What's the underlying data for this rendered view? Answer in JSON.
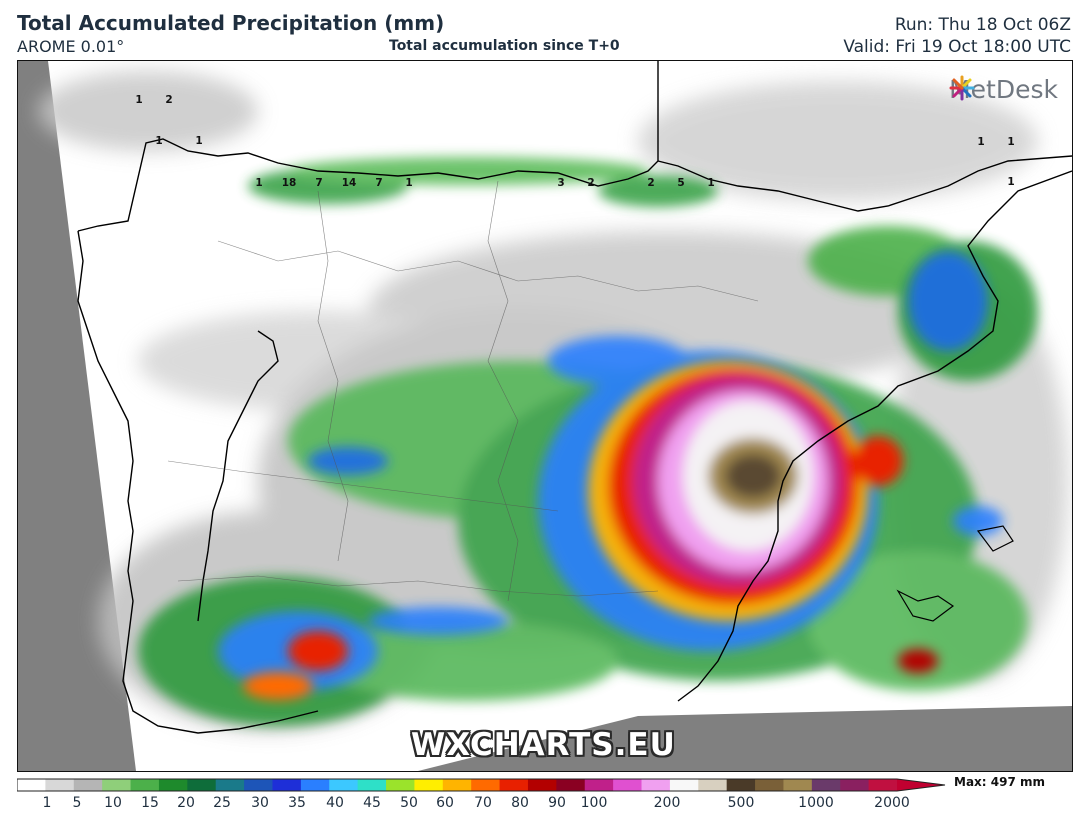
{
  "header": {
    "title": "Total Accumulated Precipitation (mm)",
    "model": "AROME 0.01°",
    "subtitle": "Total accumulation since T+0",
    "run": "Run: Thu 18 Oct 06Z",
    "valid": "Valid: Fri 19 Oct 18:00 UTC"
  },
  "logo": {
    "text": "MetDesk",
    "icon": "metdesk-burst-icon"
  },
  "watermark": "WXCHARTS.EU",
  "legend": {
    "max_label": "Max: 497 mm",
    "ticks": [
      "1",
      "5",
      "10",
      "15",
      "20",
      "25",
      "30",
      "35",
      "40",
      "45",
      "50",
      "60",
      "70",
      "80",
      "90",
      "100",
      "200",
      "500",
      "1000",
      "2000"
    ],
    "colors": [
      "#ffffff",
      "#d8d8d8",
      "#b5b5b5",
      "#8fcf7a",
      "#4cb04a",
      "#1e8a2c",
      "#0e6d3a",
      "#1a7a8a",
      "#1d55b8",
      "#1e2fd8",
      "#2a7fff",
      "#3cc8ff",
      "#2ee0c8",
      "#9be32b",
      "#ffee00",
      "#ffb400",
      "#ff6a00",
      "#e82000",
      "#b30000",
      "#8a0022",
      "#c0208a",
      "#e050d0",
      "#f0a0f0",
      "#f8f8f8",
      "#d8d0c0",
      "#4a3a28",
      "#7a6038",
      "#a08850",
      "#6a3a6a",
      "#8a2060",
      "#c01040"
    ],
    "accent_bar_end": "#c00030"
  },
  "map_values": [
    {
      "t": "1",
      "r": "row1"
    },
    {
      "t": "2",
      "r": "row1"
    },
    {
      "t": "1",
      "r": "row2"
    },
    {
      "t": "1",
      "r": "row2"
    },
    {
      "t": "1",
      "r": "cant"
    },
    {
      "t": "18",
      "r": "cant"
    },
    {
      "t": "7",
      "r": "cant"
    },
    {
      "t": "14",
      "r": "cant"
    },
    {
      "t": "7",
      "r": "cant"
    },
    {
      "t": "1",
      "r": "cant"
    },
    {
      "t": "3",
      "r": "n"
    },
    {
      "t": "2",
      "r": "n"
    },
    {
      "t": "2",
      "r": "n"
    },
    {
      "t": "5",
      "r": "n"
    },
    {
      "t": "1",
      "r": "n"
    },
    {
      "t": "1",
      "r": "ne"
    },
    {
      "t": "1",
      "r": "ne"
    },
    {
      "t": "1",
      "r": "ne"
    }
  ]
}
